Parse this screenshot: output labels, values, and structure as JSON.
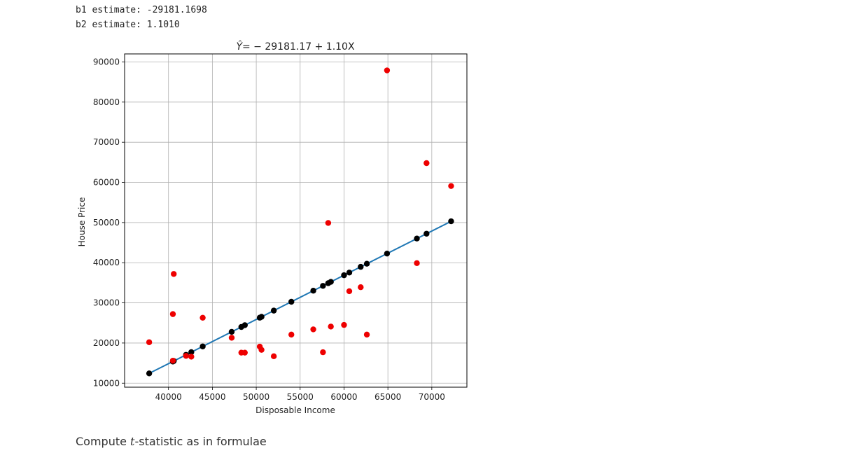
{
  "output": {
    "line1": "b1 estimate: -29181.1698",
    "line2": "b2 estimate: 1.1010"
  },
  "markdown": {
    "prefix": "Compute ",
    "var": "t",
    "suffix": "-statistic as in formulae"
  },
  "colors": {
    "observed": "#ee0000",
    "fitted": "#000000",
    "line": "#1f77b4"
  },
  "chart_data": {
    "type": "scatter",
    "title_prefix": "Ŷ",
    "title_rest": "= − 29181.17 + 1.10X",
    "xlabel": "Disposable Income",
    "ylabel": "House Price",
    "xlim": [
      35000,
      74000
    ],
    "ylim": [
      9000,
      92000
    ],
    "xticks": [
      40000,
      45000,
      50000,
      55000,
      60000,
      65000,
      70000
    ],
    "yticks": [
      10000,
      20000,
      30000,
      40000,
      50000,
      60000,
      70000,
      80000,
      90000
    ],
    "grid": true,
    "intercept": -29181.17,
    "slope": 1.101,
    "series": [
      {
        "points": [
          [
            37800,
            20200
          ],
          [
            40500,
            27200
          ],
          [
            40600,
            37200
          ],
          [
            40500,
            15600
          ],
          [
            42000,
            16800
          ],
          [
            42600,
            16600
          ],
          [
            43900,
            26300
          ],
          [
            47200,
            21300
          ],
          [
            48300,
            17600
          ],
          [
            48700,
            17600
          ],
          [
            50400,
            19100
          ],
          [
            50600,
            18300
          ],
          [
            52000,
            16700
          ],
          [
            54000,
            22100
          ],
          [
            56500,
            23400
          ],
          [
            57600,
            17700
          ],
          [
            58200,
            49900
          ],
          [
            58500,
            24100
          ],
          [
            60000,
            24500
          ],
          [
            60600,
            32900
          ],
          [
            61900,
            33900
          ],
          [
            62600,
            22100
          ],
          [
            64900,
            87900
          ],
          [
            68300,
            39900
          ],
          [
            69400,
            64800
          ],
          [
            72200,
            59100
          ]
        ]
      }
    ]
  }
}
